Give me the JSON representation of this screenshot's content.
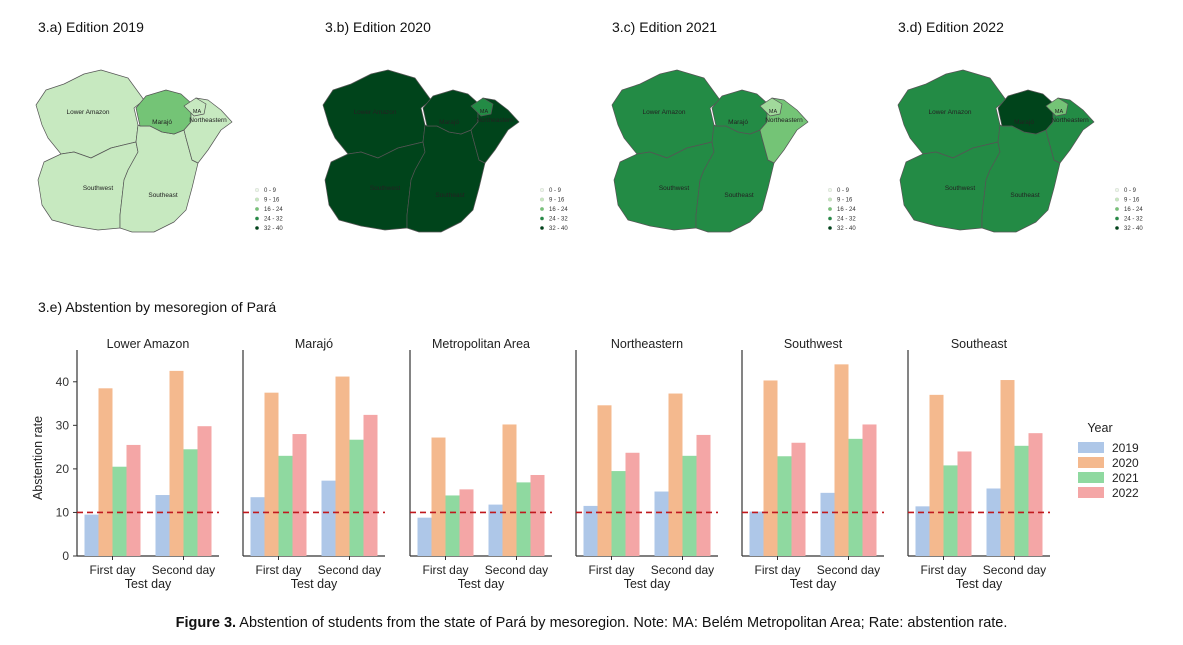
{
  "maps": {
    "panels": [
      {
        "title": "3.a) Edition 2019",
        "fills": {
          "lower_amazon": "#c7e9c0",
          "marajo": "#74c476",
          "ma": "#c7e9c0",
          "northeastern": "#c7e9c0",
          "southwest": "#c7e9c0",
          "southeast": "#c7e9c0"
        }
      },
      {
        "title": "3.b) Edition 2020",
        "fills": {
          "lower_amazon": "#00441b",
          "marajo": "#00441b",
          "ma": "#238b45",
          "northeastern": "#00441b",
          "southwest": "#00441b",
          "southeast": "#00441b"
        }
      },
      {
        "title": "3.c) Edition 2021",
        "fills": {
          "lower_amazon": "#238b45",
          "marajo": "#238b45",
          "ma": "#a1d99b",
          "northeastern": "#74c476",
          "southwest": "#238b45",
          "southeast": "#238b45"
        }
      },
      {
        "title": "3.d) Edition 2022",
        "fills": {
          "lower_amazon": "#238b45",
          "marajo": "#00441b",
          "ma": "#74c476",
          "northeastern": "#238b45",
          "southwest": "#238b45",
          "southeast": "#238b45"
        }
      }
    ],
    "region_labels": {
      "lower_amazon": "Lower Amazon",
      "marajo": "Marajó",
      "ma": "MA",
      "northeastern": "Northeastern",
      "southwest": "Southwest",
      "southeast": "Southeast"
    },
    "legend": [
      {
        "label": "0 - 9",
        "color": "#edf8e9"
      },
      {
        "label": "9 - 16",
        "color": "#c7e9c0"
      },
      {
        "label": "16 - 24",
        "color": "#74c476"
      },
      {
        "label": "24 - 32",
        "color": "#238b45"
      },
      {
        "label": "32 - 40",
        "color": "#00441b"
      }
    ]
  },
  "bar_section_title": "3.e) Abstention by mesoregion of Pará",
  "chart_data": {
    "type": "bar",
    "ylabel": "Abstention rate",
    "xlabel": "Test day",
    "categories": [
      "First day",
      "Second day"
    ],
    "ylim": [
      0,
      45
    ],
    "yticks": [
      0,
      10,
      20,
      30,
      40
    ],
    "reference_line": 10,
    "legend_title": "Year",
    "legend_position": "right",
    "series_names": [
      "2019",
      "2020",
      "2021",
      "2022"
    ],
    "series_colors": [
      "#aec7e8",
      "#f4b98e",
      "#8fd9a0",
      "#f4a6a6"
    ],
    "panels": [
      {
        "title": "Lower Amazon",
        "values": [
          [
            9.5,
            14.0
          ],
          [
            38.5,
            42.5
          ],
          [
            20.5,
            24.5
          ],
          [
            25.5,
            29.8
          ]
        ]
      },
      {
        "title": "Marajó",
        "values": [
          [
            13.5,
            17.3
          ],
          [
            37.5,
            41.2
          ],
          [
            23.0,
            26.7
          ],
          [
            28.0,
            32.4
          ]
        ]
      },
      {
        "title": "Metropolitan Area",
        "values": [
          [
            8.8,
            11.8
          ],
          [
            27.2,
            30.2
          ],
          [
            13.9,
            16.9
          ],
          [
            15.3,
            18.6
          ]
        ]
      },
      {
        "title": "Northeastern",
        "values": [
          [
            11.5,
            14.8
          ],
          [
            34.6,
            37.3
          ],
          [
            19.5,
            23.0
          ],
          [
            23.7,
            27.8
          ]
        ]
      },
      {
        "title": "Southwest",
        "values": [
          [
            10.2,
            14.5
          ],
          [
            40.3,
            44.0
          ],
          [
            22.9,
            26.9
          ],
          [
            26.0,
            30.2
          ]
        ]
      },
      {
        "title": "Southeast",
        "values": [
          [
            11.4,
            15.5
          ],
          [
            37.0,
            40.4
          ],
          [
            20.8,
            25.3
          ],
          [
            24.0,
            28.2
          ]
        ]
      }
    ]
  },
  "caption": {
    "label": "Figure 3.",
    "text": " Abstention of students from the state of Pará by mesoregion. Note: MA: Belém Metropolitan Area; Rate: abstention rate."
  }
}
